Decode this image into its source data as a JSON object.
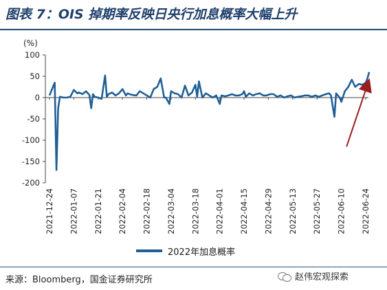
{
  "title": "图表 7：OIS 掉期率反映日央行加息概率大幅上升",
  "unit": "(%)",
  "source": "来源：Bloomberg，国金证券研究所",
  "watermark": "赵伟宏观探索",
  "colors": {
    "series": "#1f5f95",
    "arrow": "#9b1c1c",
    "title": "#1f3f6b"
  },
  "chart_data": {
    "type": "line",
    "title": "",
    "xlabel": "",
    "ylabel": "(%)",
    "ylim": [
      -200,
      100
    ],
    "yticks": [
      100,
      50,
      0,
      -50,
      -100,
      -150,
      -200
    ],
    "xticks": [
      "2021-12-24",
      "2022-01-07",
      "2022-01-21",
      "2022-02-04",
      "2022-02-18",
      "2022-03-04",
      "2022-03-18",
      "2022-04-01",
      "2022-04-15",
      "2022-04-29",
      "2022-05-13",
      "2022-05-27",
      "2022-06-10",
      "2022-06-24"
    ],
    "grid": false,
    "legend_position": "bottom",
    "annotations": [
      {
        "type": "arrow",
        "description": "upward arrow pointing at late-June rise",
        "from": [
          "2022-06-13",
          -115
        ],
        "to": [
          "2022-06-25",
          30
        ]
      }
    ],
    "series": [
      {
        "name": "2022年加息概率",
        "x": [
          "2021-12-24",
          "2021-12-25",
          "2021-12-27",
          "2021-12-28",
          "2021-12-29",
          "2021-12-30",
          "2022-01-01",
          "2022-01-03",
          "2022-01-05",
          "2022-01-07",
          "2022-01-09",
          "2022-01-10",
          "2022-01-12",
          "2022-01-14",
          "2022-01-16",
          "2022-01-17",
          "2022-01-18",
          "2022-01-19",
          "2022-01-21",
          "2022-01-23",
          "2022-01-25",
          "2022-01-26",
          "2022-01-27",
          "2022-01-29",
          "2022-01-31",
          "2022-02-02",
          "2022-02-04",
          "2022-02-06",
          "2022-02-07",
          "2022-02-08",
          "2022-02-10",
          "2022-02-12",
          "2022-02-14",
          "2022-02-16",
          "2022-02-18",
          "2022-02-20",
          "2022-02-22",
          "2022-02-24",
          "2022-02-26",
          "2022-02-28",
          "2022-03-01",
          "2022-03-03",
          "2022-03-04",
          "2022-03-06",
          "2022-03-08",
          "2022-03-10",
          "2022-03-12",
          "2022-03-14",
          "2022-03-16",
          "2022-03-18",
          "2022-03-19",
          "2022-03-20",
          "2022-03-22",
          "2022-03-24",
          "2022-03-26",
          "2022-03-28",
          "2022-03-30",
          "2022-04-01",
          "2022-04-02",
          "2022-04-04",
          "2022-04-06",
          "2022-04-08",
          "2022-04-10",
          "2022-04-12",
          "2022-04-14",
          "2022-04-15",
          "2022-04-16",
          "2022-04-18",
          "2022-04-20",
          "2022-04-22",
          "2022-04-24",
          "2022-04-26",
          "2022-04-28",
          "2022-04-30",
          "2022-05-02",
          "2022-05-04",
          "2022-05-06",
          "2022-05-08",
          "2022-05-10",
          "2022-05-12",
          "2022-05-14",
          "2022-05-16",
          "2022-05-18",
          "2022-05-20",
          "2022-05-22",
          "2022-05-24",
          "2022-05-26",
          "2022-05-28",
          "2022-05-30",
          "2022-06-01",
          "2022-06-03",
          "2022-06-04",
          "2022-06-05",
          "2022-06-06",
          "2022-06-07",
          "2022-06-08",
          "2022-06-09",
          "2022-06-10",
          "2022-06-12",
          "2022-06-14",
          "2022-06-16",
          "2022-06-18",
          "2022-06-20",
          "2022-06-22",
          "2022-06-24",
          "2022-06-25",
          "2022-06-26"
        ],
        "values": [
          5,
          15,
          35,
          -170,
          -25,
          2,
          0,
          0,
          2,
          18,
          10,
          12,
          8,
          15,
          6,
          -25,
          8,
          2,
          0,
          -3,
          52,
          2,
          8,
          12,
          5,
          10,
          20,
          5,
          10,
          8,
          6,
          5,
          15,
          10,
          5,
          0,
          20,
          25,
          45,
          0,
          0,
          -15,
          15,
          10,
          8,
          0,
          28,
          5,
          12,
          30,
          2,
          38,
          0,
          10,
          5,
          0,
          5,
          -15,
          5,
          3,
          5,
          8,
          5,
          5,
          8,
          15,
          2,
          10,
          5,
          8,
          10,
          5,
          5,
          8,
          8,
          2,
          5,
          0,
          3,
          5,
          0,
          2,
          3,
          5,
          5,
          2,
          5,
          2,
          5,
          8,
          10,
          5,
          -20,
          -45,
          10,
          5,
          0,
          -10,
          15,
          25,
          42,
          25,
          32,
          30,
          35,
          45,
          60
        ]
      }
    ]
  }
}
